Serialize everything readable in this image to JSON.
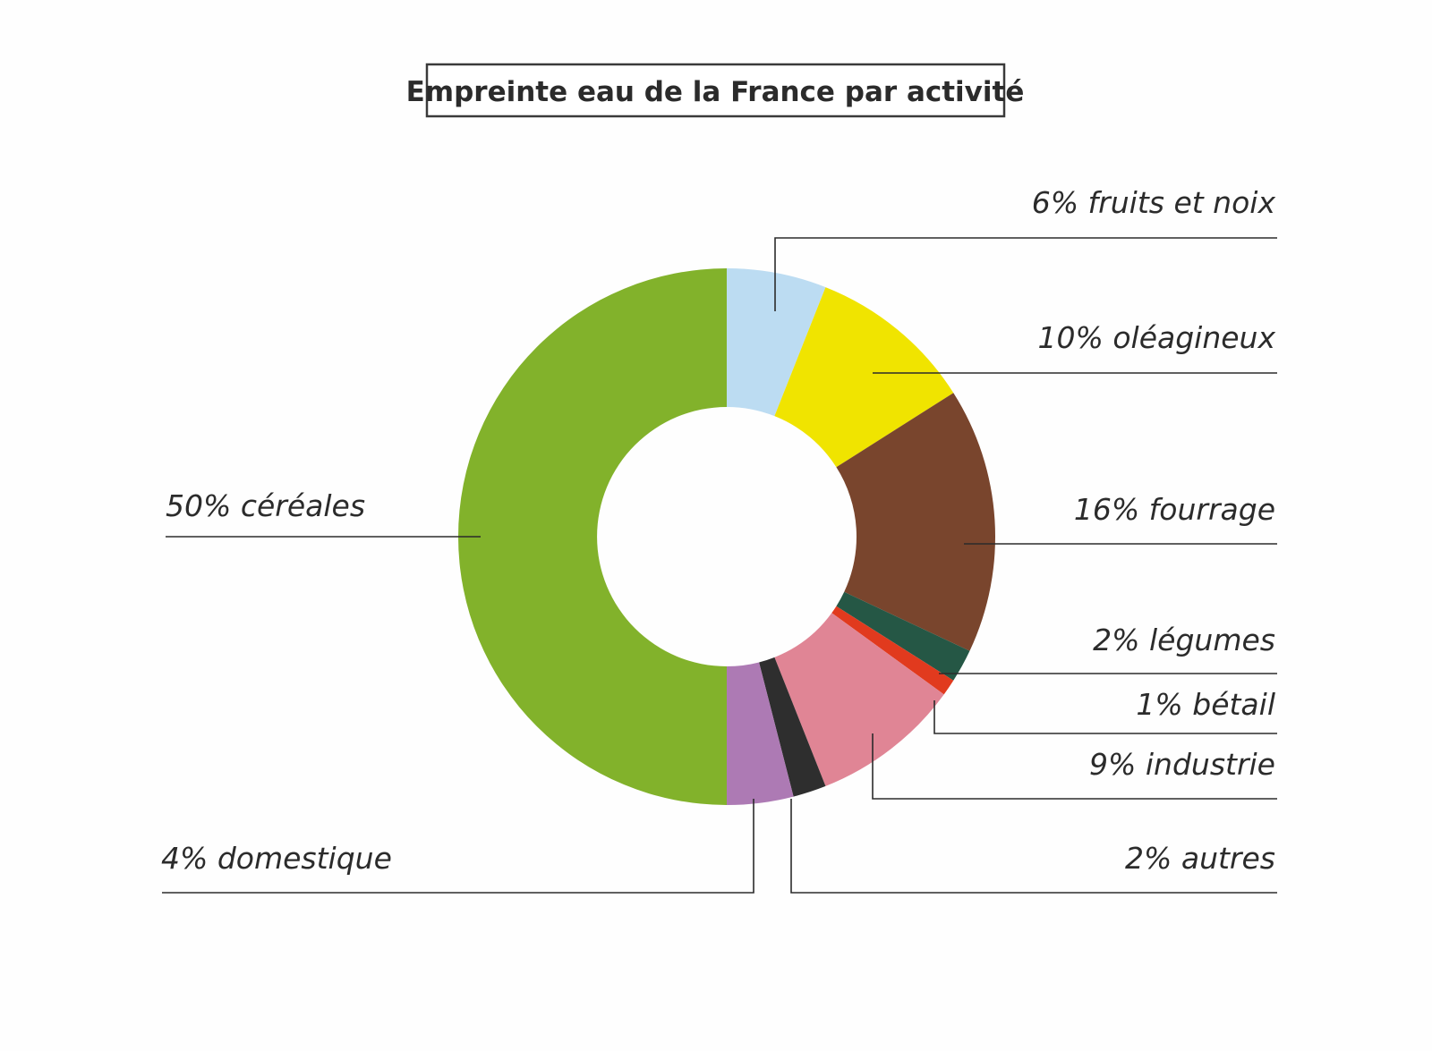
{
  "chart_data": {
    "type": "pie",
    "variant": "donut",
    "title": "Empreinte eau de la France par activité",
    "unit": "%",
    "slices": [
      {
        "name": "fruits et noix",
        "label": "6% fruits et noix",
        "value": 6,
        "color": "#bcdcf2"
      },
      {
        "name": "oléagineux",
        "label": "10% oléagineux",
        "value": 10,
        "color": "#f0e400"
      },
      {
        "name": "fourrage",
        "label": "16% fourrage",
        "value": 16,
        "color": "#79452d"
      },
      {
        "name": "légumes",
        "label": "2% légumes",
        "value": 2,
        "color": "#255745"
      },
      {
        "name": "bétail",
        "label": "1% bétail",
        "value": 1,
        "color": "#e13a1e"
      },
      {
        "name": "industrie",
        "label": "9% industrie",
        "value": 9,
        "color": "#e08595"
      },
      {
        "name": "autres",
        "label": "2% autres",
        "value": 2,
        "color": "#2e2e2e"
      },
      {
        "name": "domestique",
        "label": "4% domestique",
        "value": 4,
        "color": "#ad7ab4"
      },
      {
        "name": "céréales",
        "label": "50% céréales",
        "value": 50,
        "color": "#82b22b"
      }
    ]
  }
}
